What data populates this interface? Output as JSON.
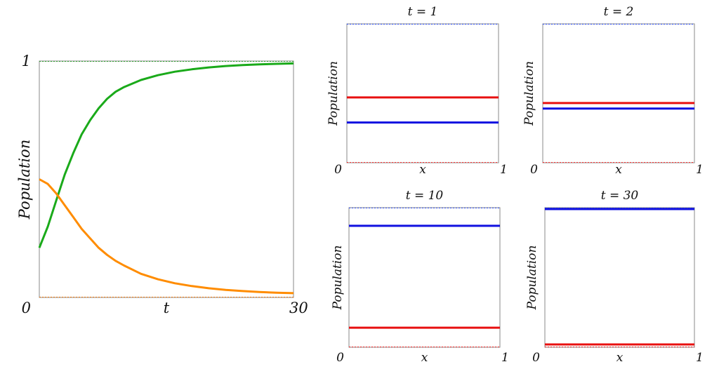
{
  "chart_data": [
    {
      "type": "line",
      "title": "",
      "xlabel": "t",
      "ylabel": "Population",
      "xlim": [
        0,
        30
      ],
      "ylim": [
        0,
        1
      ],
      "x_ticks": [
        "0",
        "30"
      ],
      "y_ticks": [
        "1"
      ],
      "reference_lines": [
        {
          "y": 1,
          "color": "#2ca02c"
        },
        {
          "y": 0,
          "color": "#ff7f0e"
        }
      ],
      "series": [
        {
          "color": "#1aaa1a",
          "x": [
            0,
            1,
            2,
            3,
            4,
            5,
            6,
            7,
            8,
            9,
            10,
            12,
            14,
            16,
            18,
            20,
            22,
            24,
            26,
            28,
            30
          ],
          "y": [
            0.21,
            0.3,
            0.41,
            0.52,
            0.61,
            0.69,
            0.75,
            0.8,
            0.84,
            0.87,
            0.89,
            0.92,
            0.94,
            0.955,
            0.965,
            0.973,
            0.979,
            0.983,
            0.986,
            0.988,
            0.99
          ]
        },
        {
          "color": "#ff8c00",
          "x": [
            0,
            1,
            2,
            3,
            4,
            5,
            6,
            7,
            8,
            9,
            10,
            12,
            14,
            16,
            18,
            20,
            22,
            24,
            26,
            28,
            30
          ],
          "y": [
            0.5,
            0.48,
            0.44,
            0.39,
            0.34,
            0.29,
            0.25,
            0.21,
            0.18,
            0.155,
            0.135,
            0.1,
            0.077,
            0.06,
            0.048,
            0.039,
            0.032,
            0.027,
            0.023,
            0.02,
            0.018
          ]
        }
      ]
    },
    {
      "type": "line",
      "title": "t = 1",
      "xlabel": "x",
      "ylabel": "Population",
      "xlim": [
        0,
        1
      ],
      "ylim": [
        0,
        1
      ],
      "x_ticks": [
        "0",
        "1"
      ],
      "reference_lines": [
        {
          "y": 1,
          "color": "#3355ff"
        },
        {
          "y": 0,
          "color": "#ff3333"
        }
      ],
      "series": [
        {
          "color": "#e81010",
          "x": [
            0,
            1
          ],
          "y": [
            0.47,
            0.47
          ]
        },
        {
          "color": "#1010e0",
          "x": [
            0,
            1
          ],
          "y": [
            0.29,
            0.29
          ]
        }
      ]
    },
    {
      "type": "line",
      "title": "t = 2",
      "xlabel": "x",
      "ylabel": "Population",
      "xlim": [
        0,
        1
      ],
      "ylim": [
        0,
        1
      ],
      "x_ticks": [
        "0",
        "1"
      ],
      "reference_lines": [
        {
          "y": 1,
          "color": "#3355ff"
        },
        {
          "y": 0,
          "color": "#ff3333"
        }
      ],
      "series": [
        {
          "color": "#e81010",
          "x": [
            0,
            1
          ],
          "y": [
            0.43,
            0.43
          ]
        },
        {
          "color": "#1010e0",
          "x": [
            0,
            1
          ],
          "y": [
            0.39,
            0.39
          ]
        }
      ]
    },
    {
      "type": "line",
      "title": "t = 10",
      "xlabel": "x",
      "ylabel": "Population",
      "xlim": [
        0,
        1
      ],
      "ylim": [
        0,
        1
      ],
      "x_ticks": [
        "0",
        "1"
      ],
      "reference_lines": [
        {
          "y": 1,
          "color": "#3355ff"
        },
        {
          "y": 0,
          "color": "#ff3333"
        }
      ],
      "series": [
        {
          "color": "#1010e0",
          "x": [
            0,
            1
          ],
          "y": [
            0.87,
            0.87
          ]
        },
        {
          "color": "#e81010",
          "x": [
            0,
            1
          ],
          "y": [
            0.14,
            0.14
          ]
        }
      ]
    },
    {
      "type": "line",
      "title": "t = 30",
      "xlabel": "x",
      "ylabel": "Population",
      "xlim": [
        0,
        1
      ],
      "ylim": [
        0,
        1
      ],
      "x_ticks": [
        "0",
        "1"
      ],
      "reference_lines": [
        {
          "y": 1,
          "color": "#3355ff"
        },
        {
          "y": 0,
          "color": "#ff3333"
        }
      ],
      "series": [
        {
          "color": "#1010e0",
          "x": [
            0,
            1
          ],
          "y": [
            0.99,
            0.99
          ]
        },
        {
          "color": "#e81010",
          "x": [
            0,
            1
          ],
          "y": [
            0.02,
            0.02
          ]
        }
      ]
    }
  ]
}
